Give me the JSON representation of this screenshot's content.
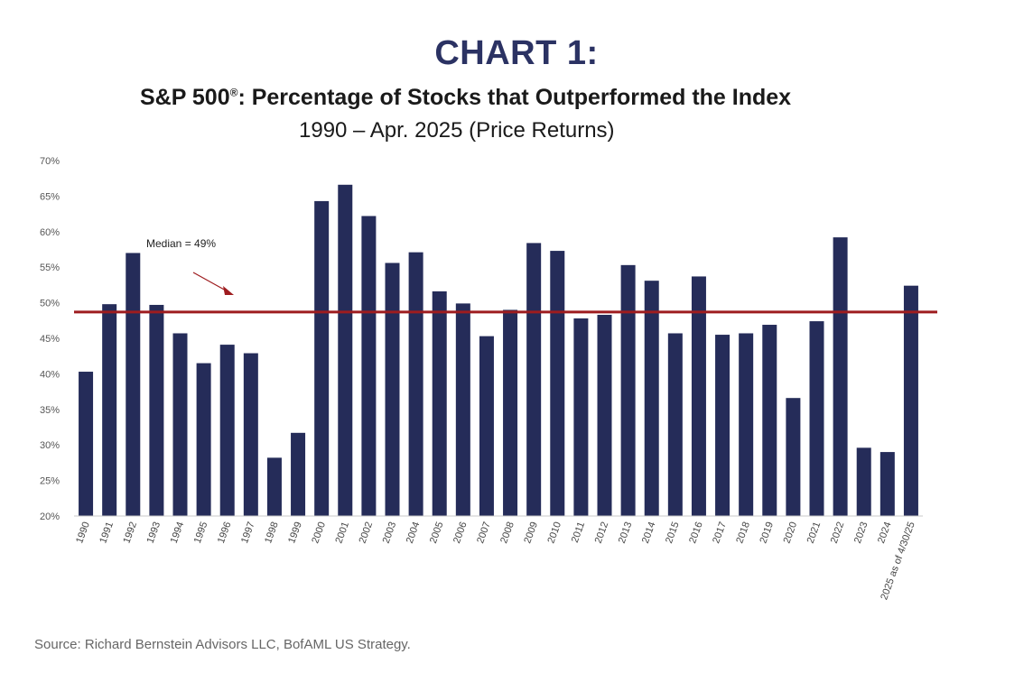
{
  "heading": "CHART 1:",
  "title_main": "S&P 500",
  "title_reg": "®",
  "title_rest": ": Percentage of Stocks that Outperformed the Index",
  "subtitle": "1990 – Apr. 2025 (Price Returns)",
  "source": "Source: Richard Bernstein Advisors LLC, BofAML US Strategy.",
  "colors": {
    "bar": "#252c59",
    "median_line": "#9e1c1f",
    "heading": "#2b3263"
  },
  "chart_data": {
    "type": "bar",
    "categories": [
      "1990",
      "1991",
      "1992",
      "1993",
      "1994",
      "1995",
      "1996",
      "1997",
      "1998",
      "1999",
      "2000",
      "2001",
      "2002",
      "2003",
      "2004",
      "2005",
      "2006",
      "2007",
      "2008",
      "2009",
      "2010",
      "2011",
      "2012",
      "2013",
      "2014",
      "2015",
      "2016",
      "2017",
      "2018",
      "2019",
      "2020",
      "2021",
      "2022",
      "2023",
      "2024",
      "2025 as of 4/30/25"
    ],
    "values": [
      40.3,
      49.8,
      57,
      49.7,
      45.7,
      41.5,
      44.1,
      42.9,
      28.2,
      31.7,
      64.3,
      66.6,
      62.2,
      55.6,
      57.1,
      51.6,
      49.9,
      45.3,
      49,
      58.4,
      57.3,
      47.8,
      48.3,
      55.3,
      53.1,
      45.7,
      53.7,
      45.5,
      45.7,
      46.9,
      36.6,
      47.4,
      59.2,
      29.6,
      29,
      52.4
    ],
    "yticks": [
      "20%",
      "25%",
      "30%",
      "35%",
      "40%",
      "45%",
      "50%",
      "55%",
      "60%",
      "65%",
      "70%"
    ],
    "ylim": [
      20,
      70
    ],
    "median": 48.7,
    "median_label": "Median = 49%",
    "grid": false
  }
}
